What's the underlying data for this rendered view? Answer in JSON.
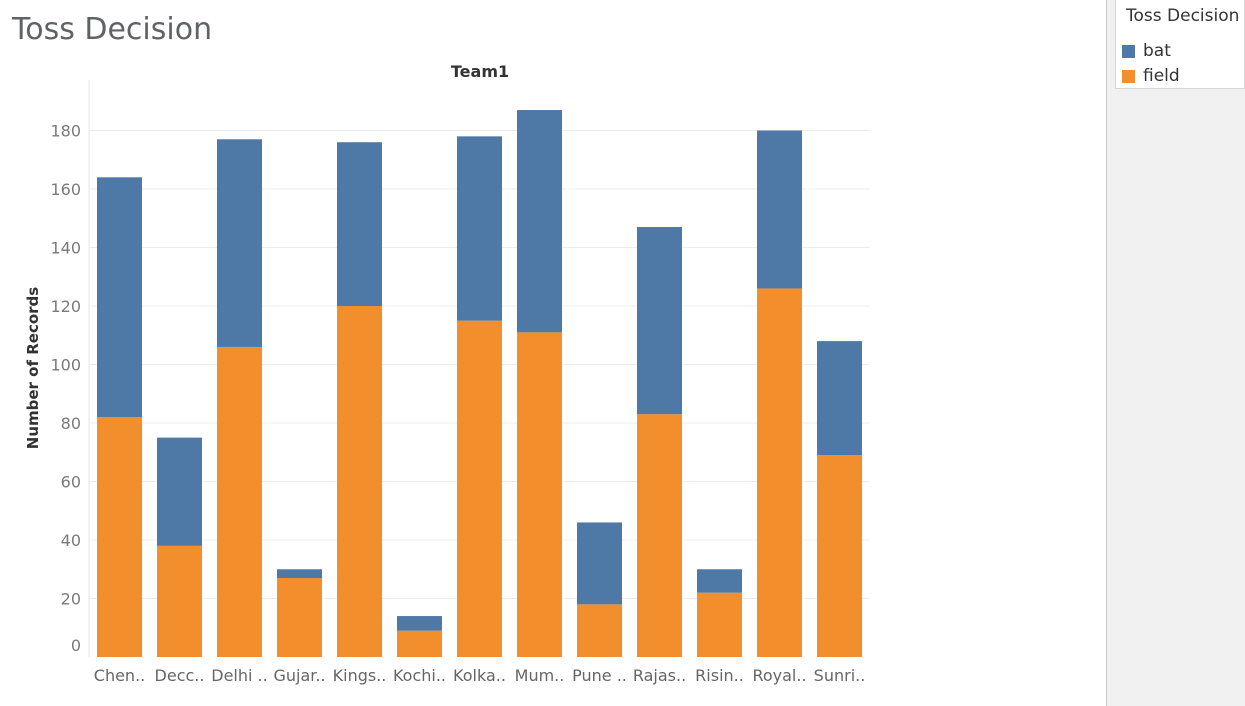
{
  "page": {
    "title": "Toss Decision"
  },
  "legend": {
    "title": "Toss Decision",
    "items": [
      {
        "label": "bat",
        "color": "#4e79a7"
      },
      {
        "label": "field",
        "color": "#f28e2b"
      }
    ]
  },
  "chart_data": {
    "type": "bar",
    "stacked": true,
    "title": "Team1",
    "xlabel": "",
    "ylabel": "Number of Records",
    "ylim": [
      0,
      190
    ],
    "yticks": [
      0,
      20,
      40,
      60,
      80,
      100,
      120,
      140,
      160,
      180
    ],
    "categories": [
      "Chen..",
      "Decc..",
      "Delhi ..",
      "Gujar..",
      "Kings..",
      "Kochi..",
      "Kolka..",
      "Mum..",
      "Pune ..",
      "Rajas..",
      "Risin..",
      "Royal..",
      "Sunri.."
    ],
    "series": [
      {
        "name": "field",
        "color": "#f28e2b",
        "values": [
          82,
          38,
          106,
          27,
          120,
          9,
          115,
          111,
          18,
          83,
          22,
          126,
          69
        ]
      },
      {
        "name": "bat",
        "color": "#4e79a7",
        "values": [
          82,
          37,
          71,
          3,
          56,
          5,
          63,
          76,
          28,
          64,
          8,
          54,
          39
        ]
      }
    ]
  }
}
